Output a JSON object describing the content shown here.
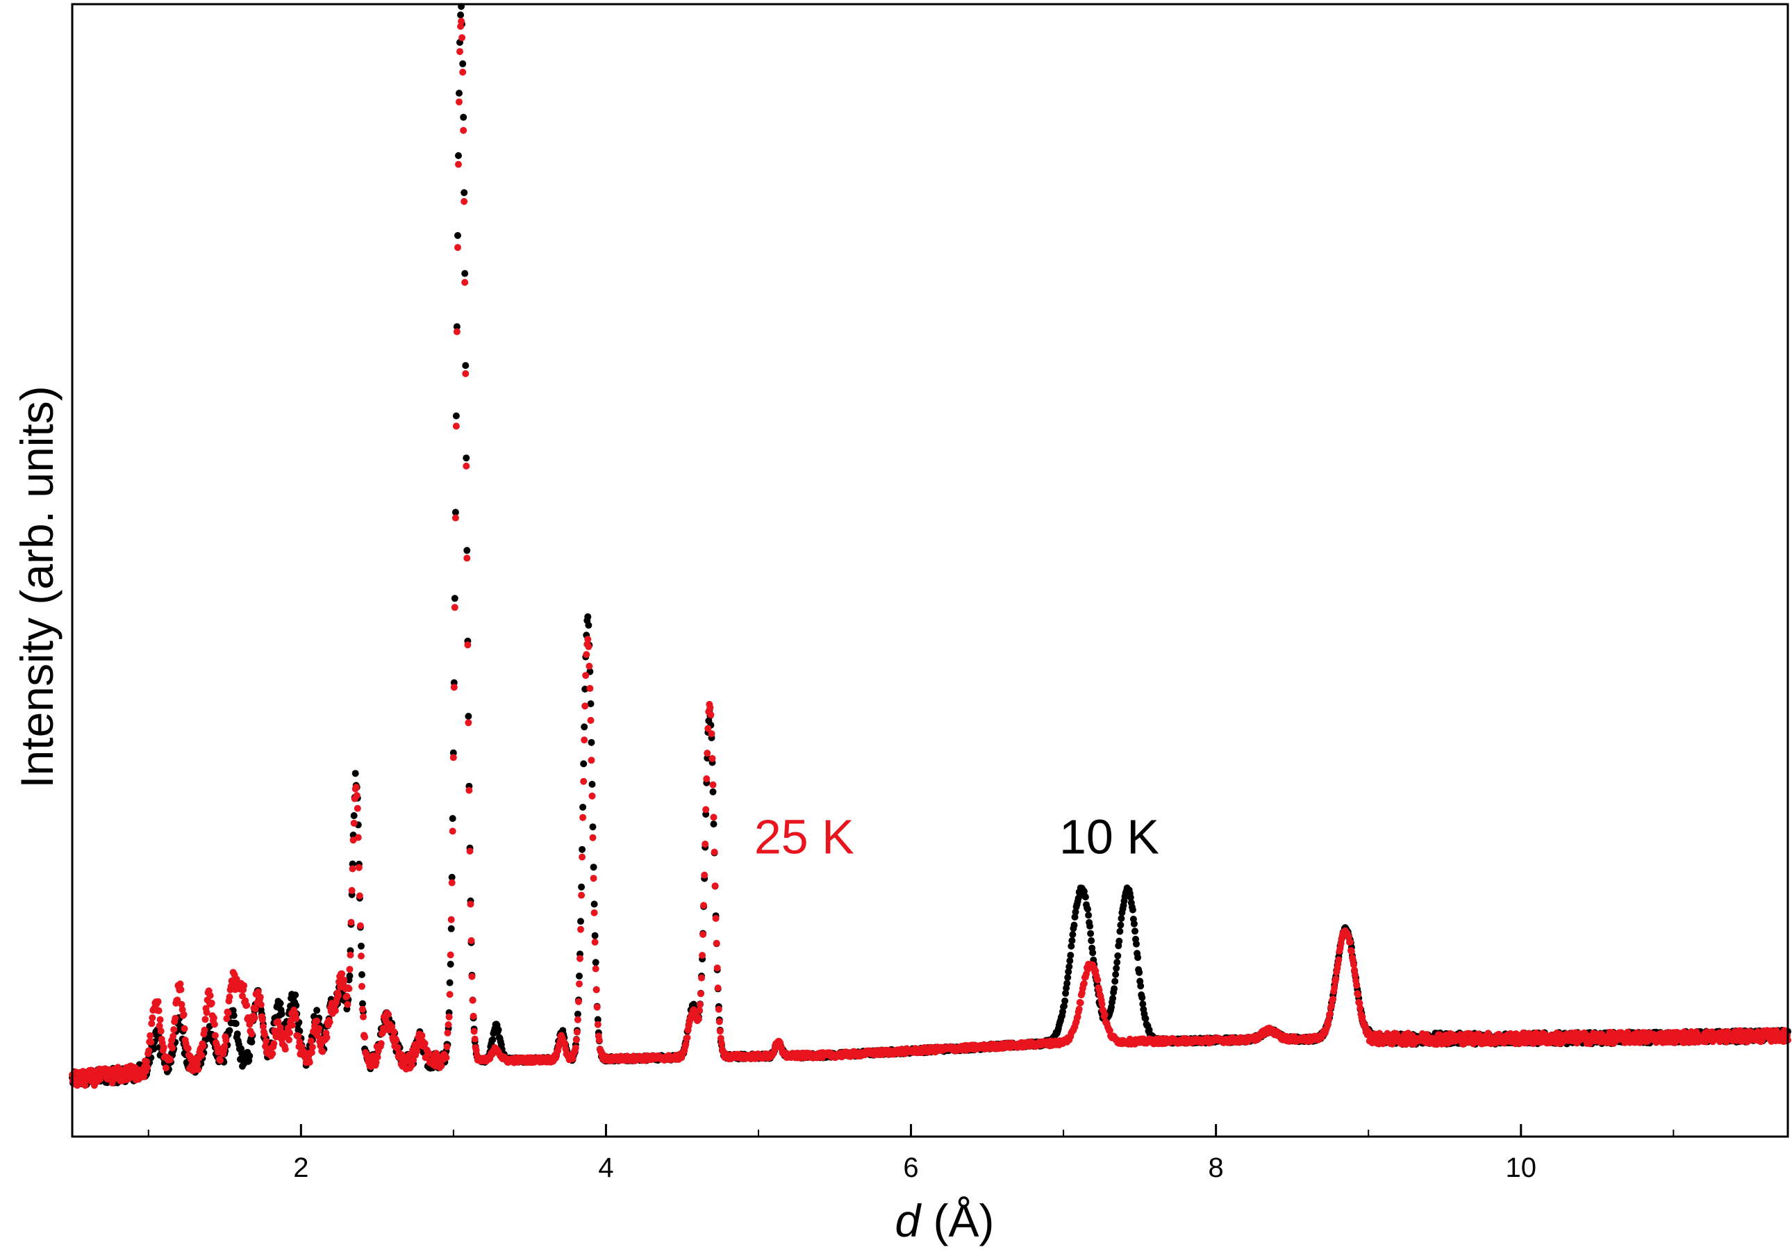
{
  "chart_data": {
    "type": "scatter",
    "title": "",
    "xlabel_italic": "d",
    "xlabel_unit": " (Å)",
    "ylabel": "Intensity (arb. units)",
    "xlim": [
      0.5,
      11.75
    ],
    "ylim": [
      0,
      100
    ],
    "x_ticks": [
      2,
      4,
      6,
      8,
      10
    ],
    "grid": false,
    "legend": "none",
    "annotations": [
      {
        "text": "25 K",
        "color": "#e8141e",
        "x": 5.3,
        "y": 25
      },
      {
        "text": "10 K",
        "color": "#000000",
        "x": 7.3,
        "y": 25
      }
    ],
    "series": [
      {
        "color": "#000000",
        "baseline": [
          [
            0.5,
            5
          ],
          [
            1.5,
            6.5
          ],
          [
            3.2,
            6.7
          ],
          [
            5.5,
            7.2
          ],
          [
            7.0,
            8.3
          ],
          [
            8.5,
            8.6
          ],
          [
            10.5,
            8.7
          ],
          [
            11.75,
            8.9
          ]
        ],
        "peaks": [
          [
            1.05,
            3,
            0.03
          ],
          [
            1.2,
            4,
            0.03
          ],
          [
            1.4,
            3,
            0.03
          ],
          [
            1.55,
            4,
            0.03
          ],
          [
            1.72,
            6,
            0.03
          ],
          [
            1.85,
            5,
            0.03
          ],
          [
            1.95,
            6,
            0.03
          ],
          [
            2.1,
            4,
            0.025
          ],
          [
            2.2,
            5,
            0.03
          ],
          [
            2.27,
            6,
            0.03
          ],
          [
            2.36,
            25,
            0.025
          ],
          [
            2.55,
            3,
            0.03
          ],
          [
            2.6,
            2,
            0.03
          ],
          [
            2.78,
            2,
            0.025
          ],
          [
            3.05,
            93,
            0.032
          ],
          [
            3.28,
            3,
            0.025
          ],
          [
            3.71,
            2.5,
            0.02
          ],
          [
            3.88,
            39,
            0.03
          ],
          [
            4.57,
            4.5,
            0.03
          ],
          [
            4.68,
            30.5,
            0.03
          ],
          [
            5.13,
            1.2,
            0.02
          ],
          [
            7.12,
            13.5,
            0.07
          ],
          [
            7.42,
            13.5,
            0.06
          ],
          [
            8.35,
            0.8,
            0.05
          ],
          [
            8.85,
            9.8,
            0.06
          ]
        ]
      },
      {
        "color": "#e8141e",
        "baseline": [
          [
            0.5,
            5
          ],
          [
            1.5,
            6.5
          ],
          [
            3.2,
            6.7
          ],
          [
            5.5,
            7.2
          ],
          [
            7.0,
            8.3
          ],
          [
            8.5,
            8.6
          ],
          [
            10.5,
            8.7
          ],
          [
            11.75,
            8.9
          ]
        ],
        "peaks": [
          [
            1.05,
            6,
            0.03
          ],
          [
            1.2,
            7,
            0.03
          ],
          [
            1.4,
            6,
            0.03
          ],
          [
            1.55,
            7,
            0.03
          ],
          [
            1.62,
            6,
            0.03
          ],
          [
            1.72,
            6,
            0.03
          ],
          [
            1.85,
            3,
            0.03
          ],
          [
            1.95,
            4,
            0.03
          ],
          [
            2.1,
            3,
            0.025
          ],
          [
            2.2,
            4,
            0.03
          ],
          [
            2.27,
            7,
            0.03
          ],
          [
            2.36,
            24,
            0.025
          ],
          [
            2.55,
            3,
            0.03
          ],
          [
            2.6,
            2,
            0.03
          ],
          [
            2.78,
            2,
            0.025
          ],
          [
            3.05,
            92,
            0.032
          ],
          [
            3.28,
            1,
            0.025
          ],
          [
            3.71,
            2,
            0.02
          ],
          [
            3.88,
            37,
            0.03
          ],
          [
            4.57,
            4,
            0.03
          ],
          [
            4.68,
            31,
            0.03
          ],
          [
            5.13,
            1.2,
            0.02
          ],
          [
            7.18,
            7,
            0.06
          ],
          [
            8.35,
            0.8,
            0.05
          ],
          [
            8.85,
            9.5,
            0.06
          ]
        ]
      }
    ]
  }
}
